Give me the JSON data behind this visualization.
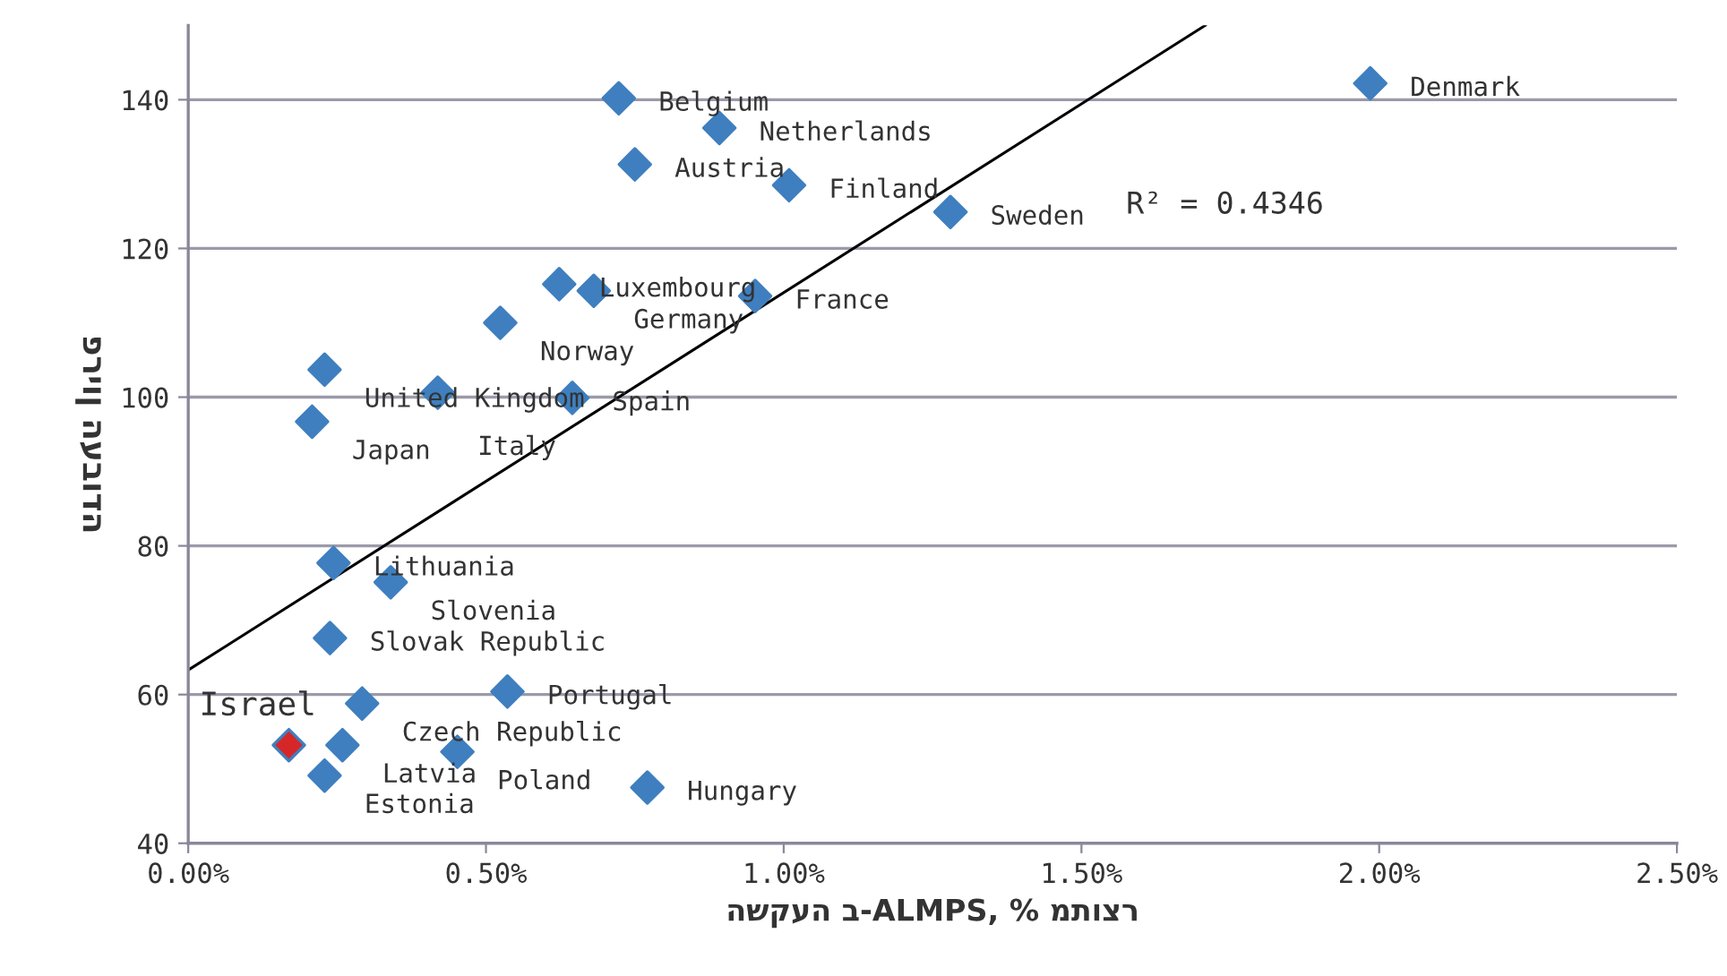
{
  "chart_data": {
    "type": "scatter",
    "xlabel": "השקעה ב-ALMPS, % מתוצר",
    "ylabel": "פריון העבודה",
    "xlim": [
      0,
      2.5
    ],
    "ylim": [
      40,
      150
    ],
    "xticks": [
      {
        "value": 0,
        "label": "0.00%"
      },
      {
        "value": 0.5,
        "label": "0.50%"
      },
      {
        "value": 1,
        "label": "1.00%"
      },
      {
        "value": 1.5,
        "label": "1.50%"
      },
      {
        "value": 2,
        "label": "2.00%"
      },
      {
        "value": 2.5,
        "label": "2.50%"
      }
    ],
    "yticks": [
      40,
      60,
      80,
      100,
      120,
      140
    ],
    "grid": "y",
    "legend": false,
    "marker": "diamond",
    "series": [
      {
        "color": "#3f7fbf",
        "x": [
          1.985,
          0.723,
          0.892,
          0.75,
          1.009,
          1.28,
          0.623,
          0.681,
          0.952,
          0.524,
          0.229,
          0.419,
          0.645,
          0.208,
          0.244,
          0.34,
          0.238,
          0.536,
          0.292,
          0.259,
          0.452,
          0.229,
          0.771
        ],
        "values": [
          142.2,
          140.2,
          136.2,
          131.3,
          128.5,
          124.9,
          115.2,
          114.3,
          113.6,
          110.0,
          103.7,
          100.6,
          99.9,
          96.7,
          77.7,
          75.1,
          67.6,
          60.4,
          58.8,
          53.2,
          52.3,
          49.1,
          47.5
        ]
      },
      {
        "name": "Israel",
        "color": "#d62728",
        "x": [
          0.169
        ],
        "values": [
          53.2
        ]
      },
      {
        "type": "line",
        "color": "#000000",
        "x": [
          0,
          1.708
        ],
        "values": [
          63.3,
          150
        ],
        "marker": "none"
      }
    ],
    "annotations": [
      {
        "text": "Denmark",
        "x": 1.985,
        "y": 142.2
      },
      {
        "text": "Belgium",
        "x": 0.723,
        "y": 140.2
      },
      {
        "text": "Netherlands",
        "x": 0.892,
        "y": 136.2
      },
      {
        "text": "Austria",
        "x": 0.75,
        "y": 131.3
      },
      {
        "text": "Finland",
        "x": 1.009,
        "y": 128.5
      },
      {
        "text": "Sweden",
        "x": 1.28,
        "y": 124.9
      },
      {
        "text": "Luxembourg",
        "x": 0.623,
        "y": 115.2
      },
      {
        "text": "Germany",
        "x": 0.681,
        "y": 114.3
      },
      {
        "text": "France",
        "x": 0.952,
        "y": 113.6
      },
      {
        "text": "Norway",
        "x": 0.524,
        "y": 110.0
      },
      {
        "text": "United Kingdom",
        "x": 0.229,
        "y": 103.7
      },
      {
        "text": "Italy",
        "x": 0.419,
        "y": 100.6
      },
      {
        "text": "Spain",
        "x": 0.645,
        "y": 99.9
      },
      {
        "text": "Japan",
        "x": 0.208,
        "y": 96.7
      },
      {
        "text": "Lithuania",
        "x": 0.244,
        "y": 77.7
      },
      {
        "text": "Slovenia",
        "x": 0.34,
        "y": 75.1
      },
      {
        "text": "Slovak Republic",
        "x": 0.238,
        "y": 67.6
      },
      {
        "text": "Portugal",
        "x": 0.536,
        "y": 60.4
      },
      {
        "text": "Czech Republic",
        "x": 0.292,
        "y": 58.8
      },
      {
        "text": "Latvia",
        "x": 0.259,
        "y": 53.2
      },
      {
        "text": "Poland",
        "x": 0.452,
        "y": 52.3
      },
      {
        "text": "Estonia",
        "x": 0.229,
        "y": 49.1
      },
      {
        "text": "Hungary",
        "x": 0.771,
        "y": 47.5
      },
      "R² = 0.4346"
    ]
  }
}
